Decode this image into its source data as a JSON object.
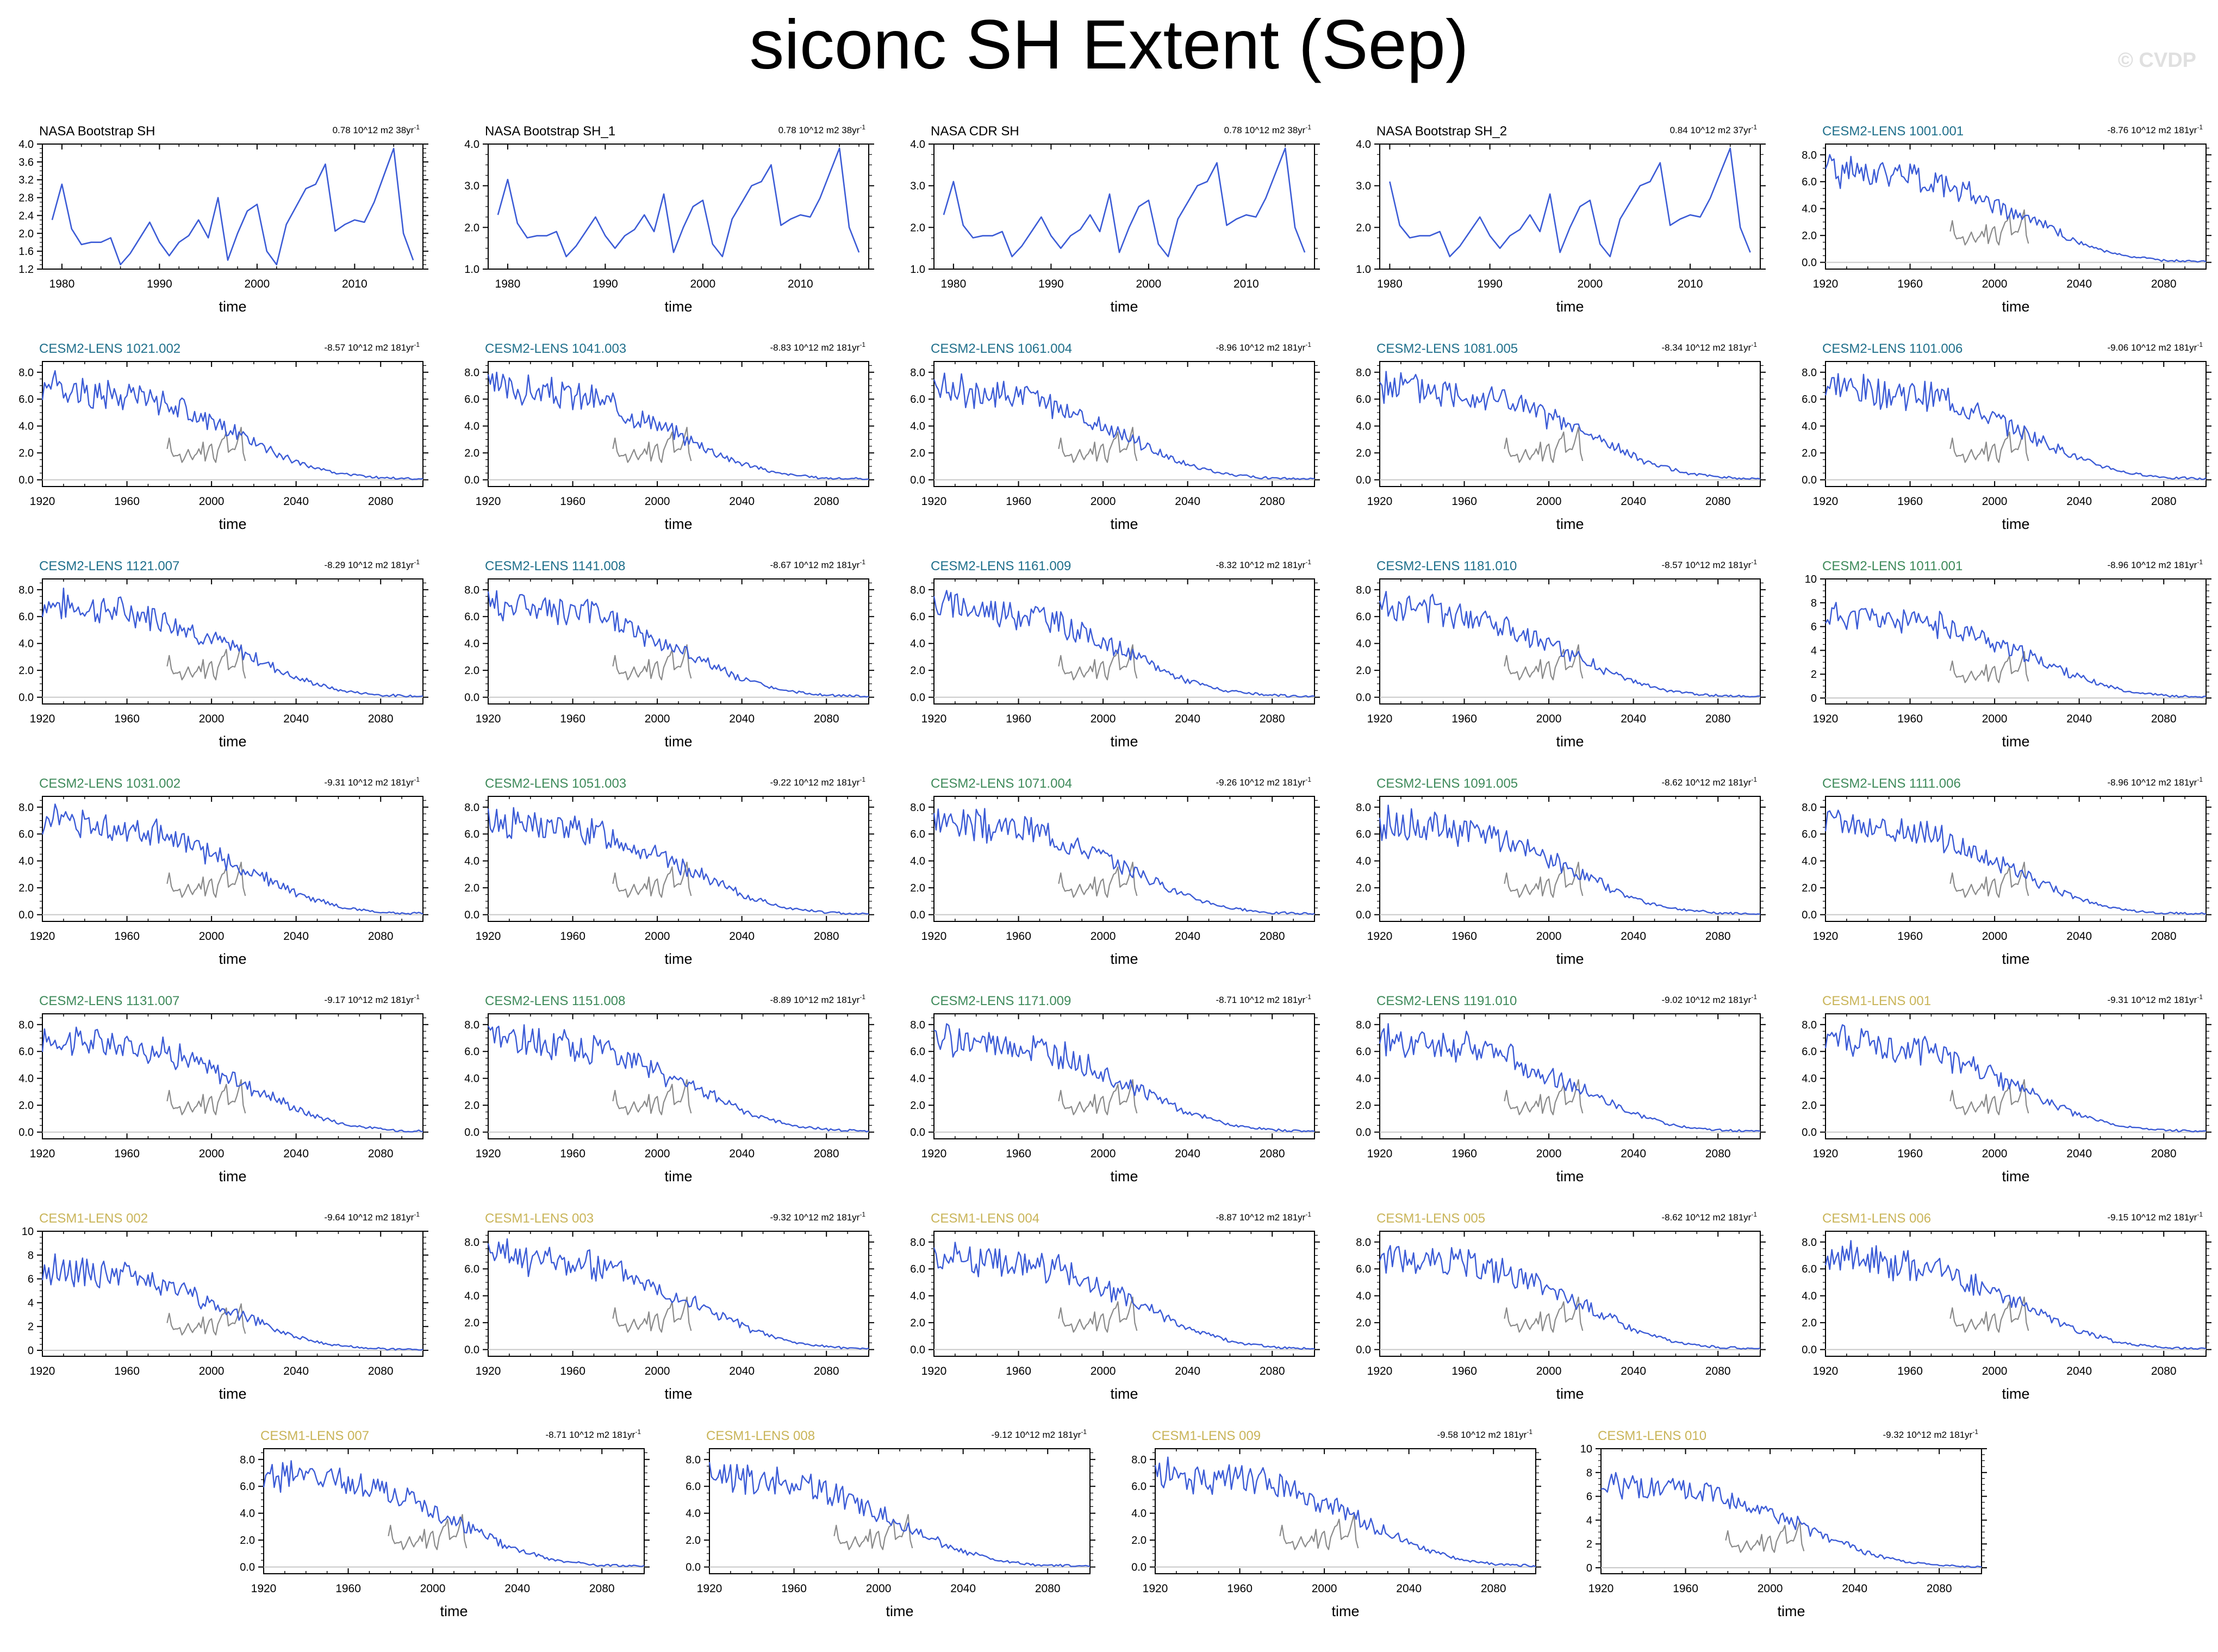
{
  "title": "siconc SH Extent (Sep)",
  "watermark": "© CVDP",
  "colors": {
    "model_line": "#3b5bd6",
    "obs_line": "#8a8a8a",
    "zero_line": "#c8c8c8",
    "obs_title": "#000000",
    "cesm2_lens_a": "#1f6f8b",
    "cesm2_lens_b": "#3e8a5a",
    "cesm1_lens": "#c9b458"
  },
  "chart_data": [
    {
      "type": "line",
      "title": "NASA Bootstrap SH",
      "title_color": "#000000",
      "trend": "0.78 10^12 m2 38yr",
      "xlabel": "time",
      "xticks": [
        1980,
        1990,
        2000,
        2010
      ],
      "xlim": [
        1978,
        2017
      ],
      "ylim": [
        1.2,
        4.0
      ],
      "yticks": [
        "1.2",
        "1.6",
        "2.0",
        "2.4",
        "2.8",
        "3.2",
        "3.6",
        "4.0"
      ],
      "series": [
        {
          "x": [
            1979,
            1980,
            1981,
            1982,
            1983,
            1984,
            1985,
            1986,
            1987,
            1988,
            1989,
            1990,
            1991,
            1992,
            1993,
            1994,
            1995,
            1996,
            1997,
            1998,
            1999,
            2000,
            2001,
            2002,
            2003,
            2004,
            2005,
            2006,
            2007,
            2008,
            2009,
            2010,
            2011,
            2012,
            2013,
            2014,
            2015,
            2016,
            2017
          ],
          "values": [
            2.3,
            3.1,
            2.1,
            1.75,
            1.8,
            1.8,
            1.9,
            1.3,
            1.55,
            1.9,
            2.25,
            1.8,
            1.5,
            1.8,
            1.95,
            2.3,
            1.9,
            2.8,
            1.4,
            2.0,
            2.5,
            2.65,
            1.6,
            1.3,
            2.2,
            2.6,
            3.0,
            3.1,
            3.55,
            2.05,
            2.2,
            2.3,
            2.25,
            2.7,
            3.3,
            3.9,
            2.0,
            1.4,
            null
          ]
        }
      ]
    },
    {
      "type": "line",
      "title": "NASA Bootstrap SH_1",
      "title_color": "#000000",
      "trend": "0.78 10^12 m2 38yr",
      "xlabel": "time",
      "xticks": [
        1980,
        1990,
        2000,
        2010
      ],
      "xlim": [
        1978,
        2017
      ],
      "ylim": [
        1.0,
        4.0
      ],
      "yticks": [
        "1.0",
        "2.0",
        "3.0",
        "4.0"
      ],
      "series": [
        {
          "x": [
            1979,
            1980,
            1981,
            1982,
            1983,
            1984,
            1985,
            1986,
            1987,
            1988,
            1989,
            1990,
            1991,
            1992,
            1993,
            1994,
            1995,
            1996,
            1997,
            1998,
            1999,
            2000,
            2001,
            2002,
            2003,
            2004,
            2005,
            2006,
            2007,
            2008,
            2009,
            2010,
            2011,
            2012,
            2013,
            2014,
            2015,
            2016
          ],
          "values": [
            2.3,
            3.15,
            2.1,
            1.75,
            1.8,
            1.8,
            1.9,
            1.3,
            1.55,
            1.9,
            2.25,
            1.8,
            1.5,
            1.8,
            1.95,
            2.3,
            1.9,
            2.8,
            1.4,
            2.0,
            2.5,
            2.65,
            1.6,
            1.3,
            2.2,
            2.6,
            3.0,
            3.1,
            3.5,
            2.05,
            2.2,
            2.3,
            2.25,
            2.7,
            3.3,
            3.9,
            2.0,
            1.4
          ]
        }
      ]
    },
    {
      "type": "line",
      "title": "NASA CDR SH",
      "title_color": "#000000",
      "trend": "0.78 10^12 m2 38yr",
      "xlabel": "time",
      "xticks": [
        1980,
        1990,
        2000,
        2010
      ],
      "xlim": [
        1978,
        2017
      ],
      "ylim": [
        1.0,
        4.0
      ],
      "yticks": [
        "1.0",
        "2.0",
        "3.0",
        "4.0"
      ],
      "series": [
        {
          "x": [
            1979,
            1980,
            1981,
            1982,
            1983,
            1984,
            1985,
            1986,
            1987,
            1988,
            1989,
            1990,
            1991,
            1992,
            1993,
            1994,
            1995,
            1996,
            1997,
            1998,
            1999,
            2000,
            2001,
            2002,
            2003,
            2004,
            2005,
            2006,
            2007,
            2008,
            2009,
            2010,
            2011,
            2012,
            2013,
            2014,
            2015,
            2016
          ],
          "values": [
            2.3,
            3.1,
            2.05,
            1.75,
            1.8,
            1.8,
            1.9,
            1.3,
            1.55,
            1.9,
            2.25,
            1.8,
            1.5,
            1.8,
            1.95,
            2.3,
            1.9,
            2.8,
            1.4,
            2.0,
            2.5,
            2.65,
            1.6,
            1.3,
            2.2,
            2.6,
            3.0,
            3.1,
            3.55,
            2.05,
            2.2,
            2.3,
            2.25,
            2.7,
            3.3,
            3.9,
            2.0,
            1.4
          ]
        }
      ]
    },
    {
      "type": "line",
      "title": "NASA Bootstrap SH_2",
      "title_color": "#000000",
      "trend": "0.84 10^12 m2 37yr",
      "xlabel": "time",
      "xticks": [
        1980,
        1990,
        2000,
        2010
      ],
      "xlim": [
        1979,
        2017
      ],
      "ylim": [
        1.0,
        4.0
      ],
      "yticks": [
        "1.0",
        "2.0",
        "3.0",
        "4.0"
      ],
      "series": [
        {
          "x": [
            1980,
            1981,
            1982,
            1983,
            1984,
            1985,
            1986,
            1987,
            1988,
            1989,
            1990,
            1991,
            1992,
            1993,
            1994,
            1995,
            1996,
            1997,
            1998,
            1999,
            2000,
            2001,
            2002,
            2003,
            2004,
            2005,
            2006,
            2007,
            2008,
            2009,
            2010,
            2011,
            2012,
            2013,
            2014,
            2015,
            2016
          ],
          "values": [
            3.1,
            2.05,
            1.75,
            1.8,
            1.8,
            1.9,
            1.3,
            1.55,
            1.9,
            2.25,
            1.8,
            1.5,
            1.8,
            1.95,
            2.3,
            1.9,
            2.8,
            1.4,
            2.0,
            2.5,
            2.65,
            1.6,
            1.3,
            2.2,
            2.6,
            3.0,
            3.1,
            3.55,
            2.05,
            2.2,
            2.3,
            2.25,
            2.7,
            3.3,
            3.9,
            2.0,
            1.4
          ]
        }
      ]
    },
    {
      "type": "line",
      "title": "CESM2-LENS 1001.001",
      "title_color": "#1f6f8b",
      "trend": "-8.76 10^12 m2 181yr",
      "seed": 1,
      "ylim": [
        -0.5,
        8.8
      ],
      "yticks": [
        "0.0",
        "2.0",
        "4.0",
        "6.0",
        "8.0"
      ]
    },
    {
      "type": "line",
      "title": "CESM2-LENS 1021.002",
      "title_color": "#1f6f8b",
      "trend": "-8.57 10^12 m2 181yr",
      "seed": 2,
      "ylim": [
        -0.5,
        8.8
      ],
      "yticks": [
        "0.0",
        "2.0",
        "4.0",
        "6.0",
        "8.0"
      ]
    },
    {
      "type": "line",
      "title": "CESM2-LENS 1041.003",
      "title_color": "#1f6f8b",
      "trend": "-8.83 10^12 m2 181yr",
      "seed": 3,
      "ylim": [
        -0.5,
        8.8
      ],
      "yticks": [
        "0.0",
        "2.0",
        "4.0",
        "6.0",
        "8.0"
      ]
    },
    {
      "type": "line",
      "title": "CESM2-LENS 1061.004",
      "title_color": "#1f6f8b",
      "trend": "-8.96 10^12 m2 181yr",
      "seed": 4,
      "ylim": [
        -0.5,
        8.8
      ],
      "yticks": [
        "0.0",
        "2.0",
        "4.0",
        "6.0",
        "8.0"
      ]
    },
    {
      "type": "line",
      "title": "CESM2-LENS 1081.005",
      "title_color": "#1f6f8b",
      "trend": "-8.34 10^12 m2 181yr",
      "seed": 5,
      "ylim": [
        -0.5,
        8.8
      ],
      "yticks": [
        "0.0",
        "2.0",
        "4.0",
        "6.0",
        "8.0"
      ]
    },
    {
      "type": "line",
      "title": "CESM2-LENS 1101.006",
      "title_color": "#1f6f8b",
      "trend": "-9.06 10^12 m2 181yr",
      "seed": 6,
      "ylim": [
        -0.5,
        8.8
      ],
      "yticks": [
        "0.0",
        "2.0",
        "4.0",
        "6.0",
        "8.0"
      ]
    },
    {
      "type": "line",
      "title": "CESM2-LENS 1121.007",
      "title_color": "#1f6f8b",
      "trend": "-8.29 10^12 m2 181yr",
      "seed": 7,
      "ylim": [
        -0.5,
        8.8
      ],
      "yticks": [
        "0.0",
        "2.0",
        "4.0",
        "6.0",
        "8.0"
      ]
    },
    {
      "type": "line",
      "title": "CESM2-LENS 1141.008",
      "title_color": "#1f6f8b",
      "trend": "-8.67 10^12 m2 181yr",
      "seed": 8,
      "ylim": [
        -0.5,
        8.8
      ],
      "yticks": [
        "0.0",
        "2.0",
        "4.0",
        "6.0",
        "8.0"
      ]
    },
    {
      "type": "line",
      "title": "CESM2-LENS 1161.009",
      "title_color": "#1f6f8b",
      "trend": "-8.32 10^12 m2 181yr",
      "seed": 9,
      "ylim": [
        -0.5,
        8.8
      ],
      "yticks": [
        "0.0",
        "2.0",
        "4.0",
        "6.0",
        "8.0"
      ]
    },
    {
      "type": "line",
      "title": "CESM2-LENS 1181.010",
      "title_color": "#1f6f8b",
      "trend": "-8.57 10^12 m2 181yr",
      "seed": 10,
      "ylim": [
        -0.5,
        8.8
      ],
      "yticks": [
        "0.0",
        "2.0",
        "4.0",
        "6.0",
        "8.0"
      ]
    },
    {
      "type": "line",
      "title": "CESM2-LENS 1011.001",
      "title_color": "#3e8a5a",
      "trend": "-8.96 10^12 m2 181yr",
      "seed": 11,
      "ylim": [
        -0.5,
        10
      ],
      "yticks": [
        "0",
        "2",
        "4",
        "6",
        "8",
        "10"
      ]
    },
    {
      "type": "line",
      "title": "CESM2-LENS 1031.002",
      "title_color": "#3e8a5a",
      "trend": "-9.31 10^12 m2 181yr",
      "seed": 12,
      "ylim": [
        -0.5,
        8.8
      ],
      "yticks": [
        "0.0",
        "2.0",
        "4.0",
        "6.0",
        "8.0"
      ]
    },
    {
      "type": "line",
      "title": "CESM2-LENS 1051.003",
      "title_color": "#3e8a5a",
      "trend": "-9.22 10^12 m2 181yr",
      "seed": 13,
      "ylim": [
        -0.5,
        8.8
      ],
      "yticks": [
        "0.0",
        "2.0",
        "4.0",
        "6.0",
        "8.0"
      ]
    },
    {
      "type": "line",
      "title": "CESM2-LENS 1071.004",
      "title_color": "#3e8a5a",
      "trend": "-9.26 10^12 m2 181yr",
      "seed": 14,
      "ylim": [
        -0.5,
        8.8
      ],
      "yticks": [
        "0.0",
        "2.0",
        "4.0",
        "6.0",
        "8.0"
      ]
    },
    {
      "type": "line",
      "title": "CESM2-LENS 1091.005",
      "title_color": "#3e8a5a",
      "trend": "-8.62 10^12 m2 181yr",
      "seed": 15,
      "ylim": [
        -0.5,
        8.8
      ],
      "yticks": [
        "0.0",
        "2.0",
        "4.0",
        "6.0",
        "8.0"
      ]
    },
    {
      "type": "line",
      "title": "CESM2-LENS 1111.006",
      "title_color": "#3e8a5a",
      "trend": "-8.96 10^12 m2 181yr",
      "seed": 16,
      "ylim": [
        -0.5,
        8.8
      ],
      "yticks": [
        "0.0",
        "2.0",
        "4.0",
        "6.0",
        "8.0"
      ]
    },
    {
      "type": "line",
      "title": "CESM2-LENS 1131.007",
      "title_color": "#3e8a5a",
      "trend": "-9.17 10^12 m2 181yr",
      "seed": 17,
      "ylim": [
        -0.5,
        8.8
      ],
      "yticks": [
        "0.0",
        "2.0",
        "4.0",
        "6.0",
        "8.0"
      ]
    },
    {
      "type": "line",
      "title": "CESM2-LENS 1151.008",
      "title_color": "#3e8a5a",
      "trend": "-8.89 10^12 m2 181yr",
      "seed": 18,
      "ylim": [
        -0.5,
        8.8
      ],
      "yticks": [
        "0.0",
        "2.0",
        "4.0",
        "6.0",
        "8.0"
      ]
    },
    {
      "type": "line",
      "title": "CESM2-LENS 1171.009",
      "title_color": "#3e8a5a",
      "trend": "-8.71 10^12 m2 181yr",
      "seed": 19,
      "ylim": [
        -0.5,
        8.8
      ],
      "yticks": [
        "0.0",
        "2.0",
        "4.0",
        "6.0",
        "8.0"
      ]
    },
    {
      "type": "line",
      "title": "CESM2-LENS 1191.010",
      "title_color": "#3e8a5a",
      "trend": "-9.02 10^12 m2 181yr",
      "seed": 20,
      "ylim": [
        -0.5,
        8.8
      ],
      "yticks": [
        "0.0",
        "2.0",
        "4.0",
        "6.0",
        "8.0"
      ]
    },
    {
      "type": "line",
      "title": "CESM1-LENS 001",
      "title_color": "#c9b458",
      "trend": "-9.31 10^12 m2 181yr",
      "seed": 21,
      "ylim": [
        -0.5,
        8.8
      ],
      "yticks": [
        "0.0",
        "2.0",
        "4.0",
        "6.0",
        "8.0"
      ]
    },
    {
      "type": "line",
      "title": "CESM1-LENS 002",
      "title_color": "#c9b458",
      "trend": "-9.64 10^12 m2 181yr",
      "seed": 22,
      "ylim": [
        -0.5,
        10
      ],
      "yticks": [
        "0",
        "2",
        "4",
        "6",
        "8",
        "10"
      ]
    },
    {
      "type": "line",
      "title": "CESM1-LENS 003",
      "title_color": "#c9b458",
      "trend": "-9.32 10^12 m2 181yr",
      "seed": 23,
      "ylim": [
        -0.5,
        8.8
      ],
      "yticks": [
        "0.0",
        "2.0",
        "4.0",
        "6.0",
        "8.0"
      ]
    },
    {
      "type": "line",
      "title": "CESM1-LENS 004",
      "title_color": "#c9b458",
      "trend": "-8.87 10^12 m2 181yr",
      "seed": 24,
      "ylim": [
        -0.5,
        8.8
      ],
      "yticks": [
        "0.0",
        "2.0",
        "4.0",
        "6.0",
        "8.0"
      ]
    },
    {
      "type": "line",
      "title": "CESM1-LENS 005",
      "title_color": "#c9b458",
      "trend": "-8.62 10^12 m2 181yr",
      "seed": 25,
      "ylim": [
        -0.5,
        8.8
      ],
      "yticks": [
        "0.0",
        "2.0",
        "4.0",
        "6.0",
        "8.0"
      ]
    },
    {
      "type": "line",
      "title": "CESM1-LENS 006",
      "title_color": "#c9b458",
      "trend": "-9.15 10^12 m2 181yr",
      "seed": 26,
      "ylim": [
        -0.5,
        8.8
      ],
      "yticks": [
        "0.0",
        "2.0",
        "4.0",
        "6.0",
        "8.0"
      ]
    },
    {
      "type": "line",
      "title": "CESM1-LENS 007",
      "title_color": "#c9b458",
      "trend": "-8.71 10^12 m2 181yr",
      "seed": 27,
      "ylim": [
        -0.5,
        8.8
      ],
      "yticks": [
        "0.0",
        "2.0",
        "4.0",
        "6.0",
        "8.0"
      ]
    },
    {
      "type": "line",
      "title": "CESM1-LENS 008",
      "title_color": "#c9b458",
      "trend": "-9.12 10^12 m2 181yr",
      "seed": 28,
      "ylim": [
        -0.5,
        8.8
      ],
      "yticks": [
        "0.0",
        "2.0",
        "4.0",
        "6.0",
        "8.0"
      ]
    },
    {
      "type": "line",
      "title": "CESM1-LENS 009",
      "title_color": "#c9b458",
      "trend": "-9.58 10^12 m2 181yr",
      "seed": 29,
      "ylim": [
        -0.5,
        8.8
      ],
      "yticks": [
        "0.0",
        "2.0",
        "4.0",
        "6.0",
        "8.0"
      ]
    },
    {
      "type": "line",
      "title": "CESM1-LENS 010",
      "title_color": "#c9b458",
      "trend": "-9.32 10^12 m2 181yr",
      "seed": 30,
      "ylim": [
        -0.5,
        10
      ],
      "yticks": [
        "0",
        "2",
        "4",
        "6",
        "8",
        "10"
      ]
    }
  ],
  "model_panel_defaults": {
    "xlabel": "time",
    "xticks": [
      1920,
      1960,
      2000,
      2040,
      2080
    ],
    "xlim": [
      1920,
      2100
    ],
    "obs_overlay_years": [
      1979,
      2016
    ],
    "obs_overlay_values": [
      2.3,
      3.1,
      2.1,
      1.75,
      1.8,
      1.8,
      1.9,
      1.3,
      1.55,
      1.9,
      2.25,
      1.8,
      1.5,
      1.8,
      1.95,
      2.3,
      1.9,
      2.8,
      1.4,
      2.0,
      2.5,
      2.65,
      1.6,
      1.3,
      2.2,
      2.6,
      3.0,
      3.1,
      3.55,
      2.05,
      2.2,
      2.3,
      2.25,
      2.7,
      3.3,
      3.9,
      2.0,
      1.4
    ],
    "mean_profile_years": [
      1920,
      1960,
      1975,
      2000,
      2020,
      2040,
      2060,
      2080,
      2100
    ],
    "mean_profile_values": [
      7.0,
      6.3,
      6.0,
      4.3,
      2.9,
      1.4,
      0.5,
      0.15,
      0.05
    ]
  }
}
